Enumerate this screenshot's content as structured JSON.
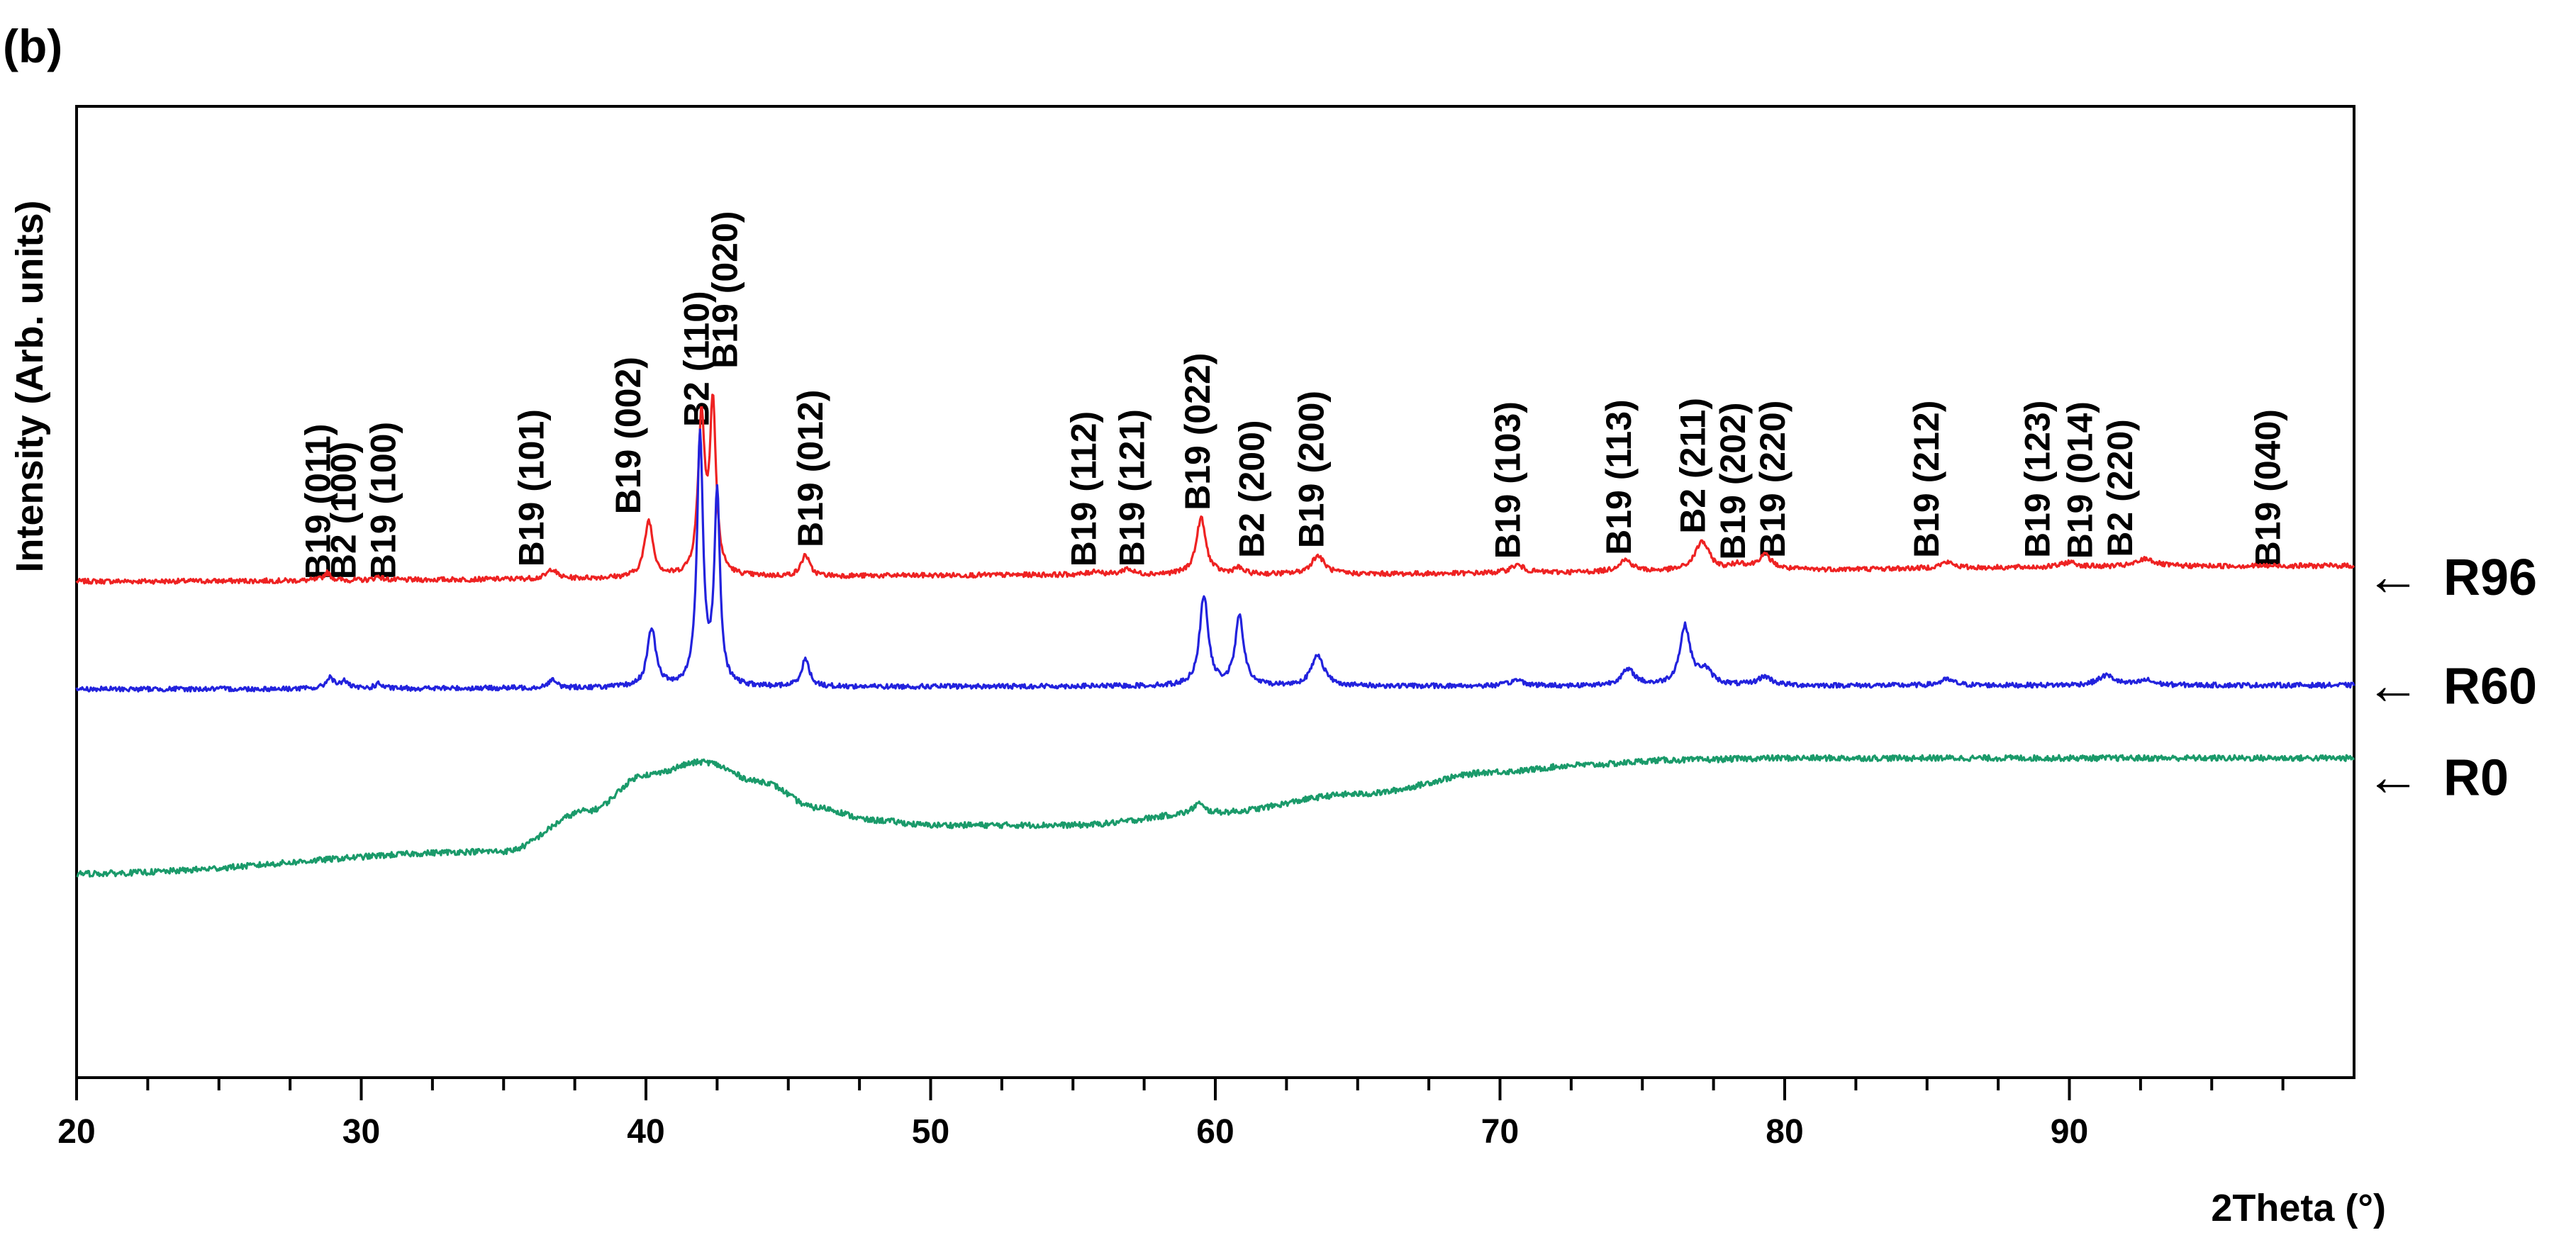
{
  "chart_data": {
    "type": "line",
    "panel_label": "(b)",
    "title": "",
    "xlabel": "2Theta (°)",
    "ylabel": "Intensity (Arb. units)",
    "xlim": [
      20,
      100
    ],
    "ylim": [
      0,
      100
    ],
    "x_ticks": [
      20,
      30,
      40,
      50,
      60,
      70,
      80,
      90
    ],
    "x_minor_step": 2.5,
    "grid": false,
    "series": [
      {
        "name": "R96",
        "color": "#ee2222",
        "baseline": 51.1,
        "noise": 0.25,
        "slope": [
          [
            20,
            0
          ],
          [
            60,
            0.7
          ],
          [
            100,
            1.6
          ]
        ],
        "peaks": [
          [
            28.8,
            0.8,
            0.15
          ],
          [
            30.6,
            0.4,
            0.15
          ],
          [
            36.7,
            1.0,
            0.18
          ],
          [
            40.1,
            5.8,
            0.18
          ],
          [
            41.95,
            16.0,
            0.14
          ],
          [
            42.35,
            17.3,
            0.13
          ],
          [
            45.6,
            2.2,
            0.17
          ],
          [
            55.8,
            0.4,
            0.2
          ],
          [
            56.9,
            0.6,
            0.2
          ],
          [
            59.5,
            5.8,
            0.2
          ],
          [
            60.8,
            0.6,
            0.2
          ],
          [
            63.6,
            1.9,
            0.28
          ],
          [
            70.6,
            0.8,
            0.3
          ],
          [
            74.4,
            1.2,
            0.3
          ],
          [
            77.1,
            3.0,
            0.3
          ],
          [
            78.4,
            0.6,
            0.3
          ],
          [
            79.3,
            1.5,
            0.3
          ],
          [
            85.7,
            0.6,
            0.3
          ],
          [
            90.0,
            0.5,
            0.3
          ],
          [
            92.7,
            0.8,
            0.35
          ]
        ]
      },
      {
        "name": "R60",
        "color": "#2222dd",
        "baseline": 40.0,
        "noise": 0.25,
        "slope": [
          [
            20,
            0
          ],
          [
            60,
            0.3
          ],
          [
            100,
            0.4
          ]
        ],
        "peaks": [
          [
            28.9,
            1.2,
            0.15
          ],
          [
            29.4,
            0.8,
            0.15
          ],
          [
            30.6,
            0.5,
            0.15
          ],
          [
            36.7,
            0.8,
            0.18
          ],
          [
            40.2,
            6.0,
            0.18
          ],
          [
            41.9,
            25.5,
            0.13
          ],
          [
            42.5,
            19.5,
            0.12
          ],
          [
            45.6,
            2.8,
            0.17
          ],
          [
            59.6,
            9.3,
            0.18
          ],
          [
            60.85,
            7.1,
            0.18
          ],
          [
            63.6,
            3.2,
            0.26
          ],
          [
            70.6,
            0.6,
            0.3
          ],
          [
            74.5,
            1.6,
            0.3
          ],
          [
            76.5,
            6.0,
            0.22
          ],
          [
            77.2,
            1.5,
            0.3
          ],
          [
            79.3,
            0.9,
            0.3
          ],
          [
            85.7,
            0.6,
            0.3
          ],
          [
            91.3,
            1.0,
            0.35
          ],
          [
            92.7,
            0.5,
            0.3
          ]
        ]
      },
      {
        "name": "R0",
        "color": "#1a9a6a",
        "baseline": 21.0,
        "noise": 0.3,
        "amorphous": [
          [
            20,
            0
          ],
          [
            35,
            2.3
          ],
          [
            38,
            6.5
          ],
          [
            40,
            10.2
          ],
          [
            42,
            11.5
          ],
          [
            44,
            9.5
          ],
          [
            46,
            6.8
          ],
          [
            48,
            5.5
          ],
          [
            50,
            5.0
          ],
          [
            55,
            5.0
          ],
          [
            60,
            6.3
          ],
          [
            65,
            8.2
          ],
          [
            70,
            10.5
          ],
          [
            73,
            11.2
          ],
          [
            76,
            11.7
          ],
          [
            80,
            11.9
          ],
          [
            90,
            11.9
          ],
          [
            100,
            11.9
          ]
        ],
        "peaks": [
          [
            59.4,
            1.0,
            0.2
          ]
        ]
      }
    ],
    "legend_markers": [
      {
        "label": "R96",
        "arrow_text": "←",
        "y": 51.6
      },
      {
        "label": "R60",
        "arrow_text": "←",
        "y": 40.4
      },
      {
        "label": "R0",
        "arrow_text": "←",
        "y": 31.0
      }
    ],
    "annotations": [
      {
        "text": "B19 (011)",
        "x": 28.9,
        "y_end": 51.3
      },
      {
        "text": "B2 (100)",
        "x": 29.8,
        "y_end": 51.3
      },
      {
        "text": "B19 (100)",
        "x": 31.2,
        "y_end": 51.3
      },
      {
        "text": "B19 (101)",
        "x": 36.4,
        "y_end": 52.6
      },
      {
        "text": "B19 (002)",
        "x": 39.8,
        "y_end": 58.0
      },
      {
        "text": "B2 (110)",
        "x": 42.2,
        "y_end": 67.0
      },
      {
        "text": "B19 (020)",
        "x": 43.2,
        "y_end": 73.0
      },
      {
        "text": "B19 (012)",
        "x": 46.2,
        "y_end": 54.6
      },
      {
        "text": "B19 (112)",
        "x": 55.8,
        "y_end": 52.6
      },
      {
        "text": "B19 (121)",
        "x": 57.5,
        "y_end": 52.6
      },
      {
        "text": "B19 (022)",
        "x": 59.8,
        "y_end": 58.4
      },
      {
        "text": "B2 (200)",
        "x": 61.7,
        "y_end": 53.5
      },
      {
        "text": "B19 (200)",
        "x": 63.8,
        "y_end": 54.5
      },
      {
        "text": "B19 (103)",
        "x": 70.7,
        "y_end": 53.4
      },
      {
        "text": "B19 (113)",
        "x": 74.6,
        "y_end": 53.8
      },
      {
        "text": "B2 (211)",
        "x": 77.2,
        "y_end": 56.0
      },
      {
        "text": "B19 (202)",
        "x": 78.6,
        "y_end": 53.3
      },
      {
        "text": "B19 (220)",
        "x": 80.0,
        "y_end": 53.5
      },
      {
        "text": "B19 (212)",
        "x": 85.4,
        "y_end": 53.5
      },
      {
        "text": "B19 (123)",
        "x": 89.3,
        "y_end": 53.5
      },
      {
        "text": "B19 (014)",
        "x": 90.8,
        "y_end": 53.4
      },
      {
        "text": "B2 (220)",
        "x": 92.2,
        "y_end": 53.6
      },
      {
        "text": "B19 (040)",
        "x": 97.4,
        "y_end": 52.6
      }
    ]
  }
}
